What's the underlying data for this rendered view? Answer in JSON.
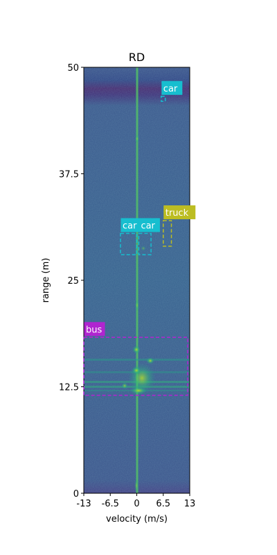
{
  "chart_data": {
    "type": "heatmap",
    "title": "RD",
    "xlabel": "velocity (m/s)",
    "ylabel": "range (m)",
    "xlim": [
      -13,
      13
    ],
    "ylim": [
      0,
      50
    ],
    "x_ticks": [
      -13,
      -6.5,
      0,
      6.5,
      13
    ],
    "x_tick_labels": [
      "-13",
      "-6.5",
      "0",
      "6.5",
      "13"
    ],
    "y_ticks": [
      0,
      12.5,
      25,
      37.5,
      50
    ],
    "y_tick_labels": [
      "0",
      "12.5",
      "25",
      "37.5",
      "50"
    ],
    "colormap": "viridis",
    "grid": false,
    "detections": [
      {
        "label": "car",
        "color": "#17becf",
        "x": [
          6.0,
          7.0
        ],
        "y": [
          46.0,
          46.6
        ]
      },
      {
        "label": "truck",
        "color": "#bcbd22",
        "x": [
          6.5,
          8.5
        ],
        "y": [
          29.0,
          32.0
        ]
      },
      {
        "label": "car",
        "color": "#17becf",
        "x": [
          -4.0,
          0.0
        ],
        "y": [
          28.0,
          30.5
        ]
      },
      {
        "label": "car",
        "color": "#17becf",
        "x": [
          0.5,
          3.5
        ],
        "y": [
          28.0,
          30.5
        ]
      },
      {
        "label": "bus",
        "color": "#b025d0",
        "x": [
          -13.0,
          12.5
        ],
        "y": [
          11.5,
          18.3
        ]
      }
    ]
  }
}
